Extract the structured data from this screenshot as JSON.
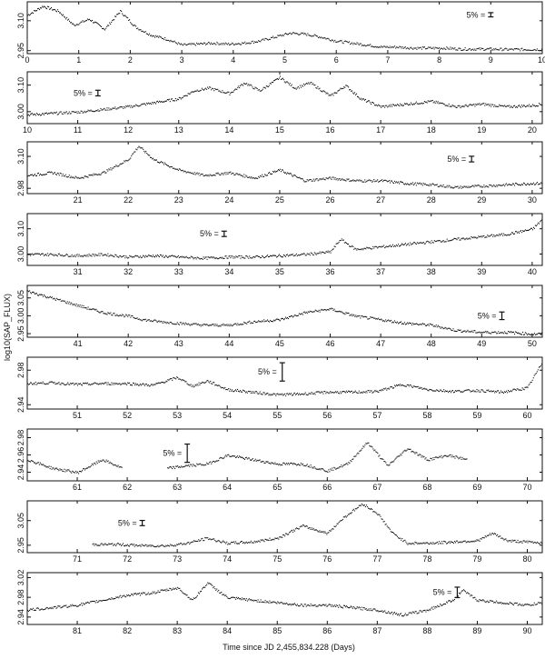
{
  "figure": {
    "ylabel": "log10(SAP_FLUX)",
    "xlabel": "Time since JD 2,455,834.228 (Days)"
  },
  "chart_data": [
    {
      "type": "scatter",
      "panel": 1,
      "xlim": [
        0,
        10
      ],
      "ylim": [
        2.935,
        3.195
      ],
      "yticks": [
        2.95,
        3.1
      ],
      "xticks": [
        0,
        1,
        2,
        3,
        4,
        5,
        6,
        7,
        8,
        9,
        10
      ],
      "x": [
        0,
        0.3,
        0.6,
        0.9,
        1.2,
        1.5,
        1.8,
        2.1,
        2.4,
        2.7,
        3,
        3.3,
        3.6,
        3.9,
        4.2,
        4.5,
        4.8,
        5.1,
        5.4,
        5.7,
        6,
        6.3,
        6.6,
        6.9,
        7.2,
        7.5,
        7.8,
        8.1,
        8.4,
        8.7,
        9,
        9.3,
        9.6,
        10
      ],
      "y": [
        3.13,
        3.175,
        3.15,
        3.08,
        3.11,
        3.06,
        3.15,
        3.07,
        3.03,
        3.01,
        2.98,
        2.985,
        2.99,
        2.985,
        2.99,
        3.0,
        3.02,
        3.04,
        3.035,
        3.02,
        3.0,
        2.99,
        2.98,
        2.97,
        2.97,
        2.965,
        2.965,
        2.965,
        2.96,
        2.96,
        2.96,
        2.958,
        2.958,
        2.958
      ],
      "scale_label": "5% =",
      "scale_x": 9.0,
      "scale_center": 3.13
    },
    {
      "type": "scatter",
      "panel": 2,
      "xlim": [
        10,
        20.2
      ],
      "ylim": [
        2.955,
        3.15
      ],
      "yticks": [
        3.0,
        3.1
      ],
      "xticks": [
        10,
        11,
        12,
        13,
        14,
        15,
        16,
        17,
        18,
        19,
        20
      ],
      "x": [
        10,
        10.5,
        11,
        11.5,
        12,
        12.5,
        13,
        13.3,
        13.6,
        14,
        14.3,
        14.6,
        15,
        15.3,
        15.6,
        16,
        16.3,
        16.6,
        17,
        17.5,
        18,
        18.5,
        19,
        19.5,
        20,
        20.2
      ],
      "y": [
        2.99,
        2.995,
        3.0,
        3.01,
        3.02,
        3.035,
        3.05,
        3.08,
        3.09,
        3.07,
        3.11,
        3.08,
        3.13,
        3.09,
        3.11,
        3.06,
        3.1,
        3.05,
        3.02,
        3.03,
        3.04,
        3.02,
        3.03,
        3.02,
        3.025,
        3.03
      ],
      "scale_label": "5% =",
      "scale_x": 11.4,
      "scale_center": 3.07
    },
    {
      "type": "scatter",
      "panel": 3,
      "xlim": [
        20,
        30.2
      ],
      "ylim": [
        2.96,
        3.155
      ],
      "yticks": [
        2.98,
        3.1
      ],
      "xticks": [
        21,
        22,
        23,
        24,
        25,
        26,
        27,
        28,
        29,
        30
      ],
      "x": [
        20,
        20.5,
        21,
        21.5,
        22,
        22.2,
        22.5,
        23,
        23.5,
        24,
        24.5,
        25,
        25.5,
        26,
        26.5,
        27,
        27.5,
        28,
        28.5,
        29,
        29.5,
        30,
        30.2
      ],
      "y": [
        3.03,
        3.04,
        3.02,
        3.04,
        3.09,
        3.14,
        3.09,
        3.05,
        3.03,
        3.04,
        3.02,
        3.05,
        3.01,
        3.02,
        3.01,
        3.01,
        3.0,
        2.995,
        2.985,
        2.99,
        2.995,
        3.0,
        3.0
      ],
      "scale_label": "5% =",
      "scale_x": 28.8,
      "scale_center": 3.09
    },
    {
      "type": "scatter",
      "panel": 4,
      "xlim": [
        30,
        40.2
      ],
      "ylim": [
        2.955,
        3.16
      ],
      "yticks": [
        3.0,
        3.1
      ],
      "xticks": [
        31,
        32,
        33,
        34,
        35,
        36,
        37,
        38,
        39,
        40
      ],
      "x": [
        30,
        30.5,
        31,
        31.5,
        32,
        32.5,
        33,
        33.5,
        34,
        34.5,
        35,
        35.5,
        36,
        36.2,
        36.5,
        37,
        37.5,
        38,
        38.5,
        39,
        39.5,
        40,
        40.2
      ],
      "y": [
        3.0,
        3.0,
        2.995,
        3.0,
        2.99,
        2.995,
        2.99,
        2.985,
        2.99,
        2.99,
        2.995,
        3.0,
        3.01,
        3.06,
        3.02,
        3.03,
        3.04,
        3.05,
        3.06,
        3.07,
        3.08,
        3.1,
        3.14
      ],
      "scale_label": "5% =",
      "scale_x": 33.9,
      "scale_center": 3.08
    },
    {
      "type": "scatter",
      "panel": 5,
      "xlim": [
        40,
        50.2
      ],
      "ylim": [
        2.94,
        3.085
      ],
      "yticks": [
        2.95,
        3.0,
        3.05
      ],
      "xticks": [
        41,
        42,
        43,
        44,
        45,
        46,
        47,
        48,
        49,
        50
      ],
      "x": [
        40,
        40.5,
        41,
        41.5,
        42,
        42.3,
        42.6,
        43,
        43.5,
        44,
        44.5,
        45,
        45.5,
        46,
        46.5,
        47,
        47.5,
        48,
        48.5,
        49,
        49.5,
        50,
        50.2
      ],
      "y": [
        3.07,
        3.05,
        3.03,
        3.01,
        3.0,
        2.99,
        2.985,
        2.98,
        2.975,
        2.975,
        2.985,
        2.99,
        3.01,
        3.02,
        3.0,
        2.99,
        2.98,
        2.975,
        2.96,
        2.955,
        2.955,
        2.95,
        2.95
      ],
      "scale_label": "5% =",
      "scale_x": 49.4,
      "scale_center": 3.0
    },
    {
      "type": "scatter",
      "panel": 6,
      "xlim": [
        50,
        60.3
      ],
      "ylim": [
        2.935,
        2.995
      ],
      "yticks": [
        2.94,
        2.98
      ],
      "xticks": [
        51,
        52,
        53,
        54,
        55,
        56,
        57,
        58,
        59,
        60
      ],
      "x": [
        50,
        50.5,
        51,
        51.5,
        52,
        52.5,
        53,
        53.3,
        53.6,
        54,
        54.5,
        55,
        55.5,
        56,
        56.5,
        57,
        57.5,
        58,
        58.5,
        59,
        59.5,
        60,
        60.3
      ],
      "y": [
        2.965,
        2.966,
        2.964,
        2.965,
        2.965,
        2.963,
        2.972,
        2.962,
        2.968,
        2.958,
        2.955,
        2.952,
        2.953,
        2.955,
        2.955,
        2.956,
        2.964,
        2.958,
        2.956,
        2.957,
        2.955,
        2.96,
        2.99
      ],
      "scale_label": "5% =",
      "scale_x": 55.1,
      "scale_center": 2.978
    },
    {
      "type": "scatter",
      "panel": 7,
      "xlim": [
        60,
        70.3
      ],
      "ylim": [
        2.93,
        2.99
      ],
      "yticks": [
        2.94,
        2.96,
        2.98
      ],
      "xticks": [
        61,
        62,
        63,
        64,
        65,
        66,
        67,
        68,
        69,
        70
      ],
      "x": [
        60,
        60.5,
        61,
        61.5,
        61.9,
        62.8,
        63.2,
        63.6,
        64,
        64.5,
        65,
        65.5,
        66,
        66.4,
        66.8,
        67.2,
        67.6,
        68,
        68.4,
        68.8
      ],
      "y": [
        2.955,
        2.945,
        2.94,
        2.955,
        2.945,
        2.945,
        2.948,
        2.95,
        2.96,
        2.955,
        2.95,
        2.95,
        2.942,
        2.95,
        2.975,
        2.948,
        2.968,
        2.955,
        2.96,
        2.955
      ],
      "scale_label": "5% =",
      "scale_x": 63.2,
      "scale_center": 2.962
    },
    {
      "type": "scatter",
      "panel": 8,
      "xlim": [
        70,
        80.3
      ],
      "ylim": [
        2.92,
        3.13
      ],
      "yticks": [
        2.95,
        3.05
      ],
      "xticks": [
        71,
        72,
        73,
        74,
        75,
        76,
        77,
        78,
        79,
        80
      ],
      "x": [
        71.3,
        71.8,
        72.3,
        72.8,
        73.2,
        73.6,
        74,
        74.5,
        75,
        75.5,
        76,
        76.3,
        76.7,
        77,
        77.3,
        77.6,
        78,
        78.5,
        79,
        79.3,
        79.6,
        80,
        80.3
      ],
      "y": [
        2.955,
        2.955,
        2.95,
        2.95,
        2.96,
        2.98,
        2.96,
        2.965,
        2.98,
        3.03,
        3.0,
        3.06,
        3.12,
        3.08,
        3.0,
        2.96,
        2.96,
        2.965,
        2.97,
        3.0,
        2.97,
        2.965,
        2.962
      ],
      "scale_label": "5% =",
      "scale_x": 72.3,
      "scale_center": 3.04
    },
    {
      "type": "scatter",
      "panel": 9,
      "xlim": [
        80,
        90.3
      ],
      "ylim": [
        2.925,
        3.03
      ],
      "yticks": [
        2.94,
        2.98,
        3.02
      ],
      "xticks": [
        81,
        82,
        83,
        84,
        85,
        86,
        87,
        88,
        89,
        90
      ],
      "x": [
        80,
        80.5,
        81,
        81.5,
        82,
        82.5,
        83,
        83.3,
        83.6,
        84,
        84.5,
        85,
        85.5,
        86,
        86.5,
        87,
        87.5,
        88,
        88.5,
        88.7,
        89,
        89.5,
        90,
        90.3
      ],
      "y": [
        2.955,
        2.96,
        2.965,
        2.975,
        2.985,
        2.99,
        3.0,
        2.975,
        3.01,
        2.98,
        2.975,
        2.97,
        2.965,
        2.965,
        2.96,
        2.955,
        2.945,
        2.955,
        2.975,
        2.995,
        2.975,
        2.97,
        2.965,
        2.97
      ],
      "scale_label": "5% =",
      "scale_x": 88.6,
      "scale_center": 2.99
    }
  ]
}
